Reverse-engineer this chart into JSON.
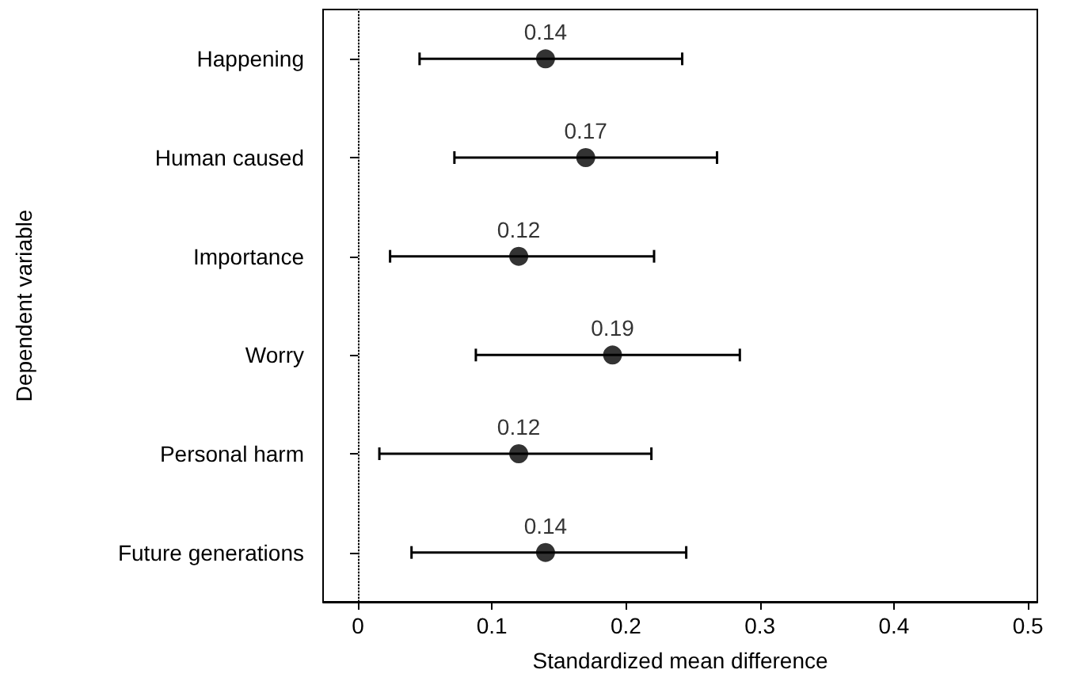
{
  "chart_data": {
    "type": "scatter",
    "orientation": "horizontal",
    "xlabel": "Standardized mean difference",
    "ylabel": "Dependent variable",
    "categories": [
      "Happening",
      "Human caused",
      "Importance",
      "Worry",
      "Personal harm",
      "Future generations"
    ],
    "values": [
      0.14,
      0.17,
      0.12,
      0.19,
      0.12,
      0.14
    ],
    "errors": [
      [
        0.046,
        0.242
      ],
      [
        0.072,
        0.268
      ],
      [
        0.024,
        0.221
      ],
      [
        0.088,
        0.285
      ],
      [
        0.016,
        0.219
      ],
      [
        0.04,
        0.245
      ]
    ],
    "color": "#000000",
    "marker": "circle",
    "data_labels": true,
    "xlim": [
      -0.026,
      0.507
    ],
    "xticks": [
      0,
      0.1,
      0.2,
      0.3,
      0.4,
      0.5
    ],
    "ref_lines": [
      {
        "axis": "x",
        "value": 0,
        "color": "#bbbbbb",
        "line_style": "dotted"
      }
    ]
  }
}
